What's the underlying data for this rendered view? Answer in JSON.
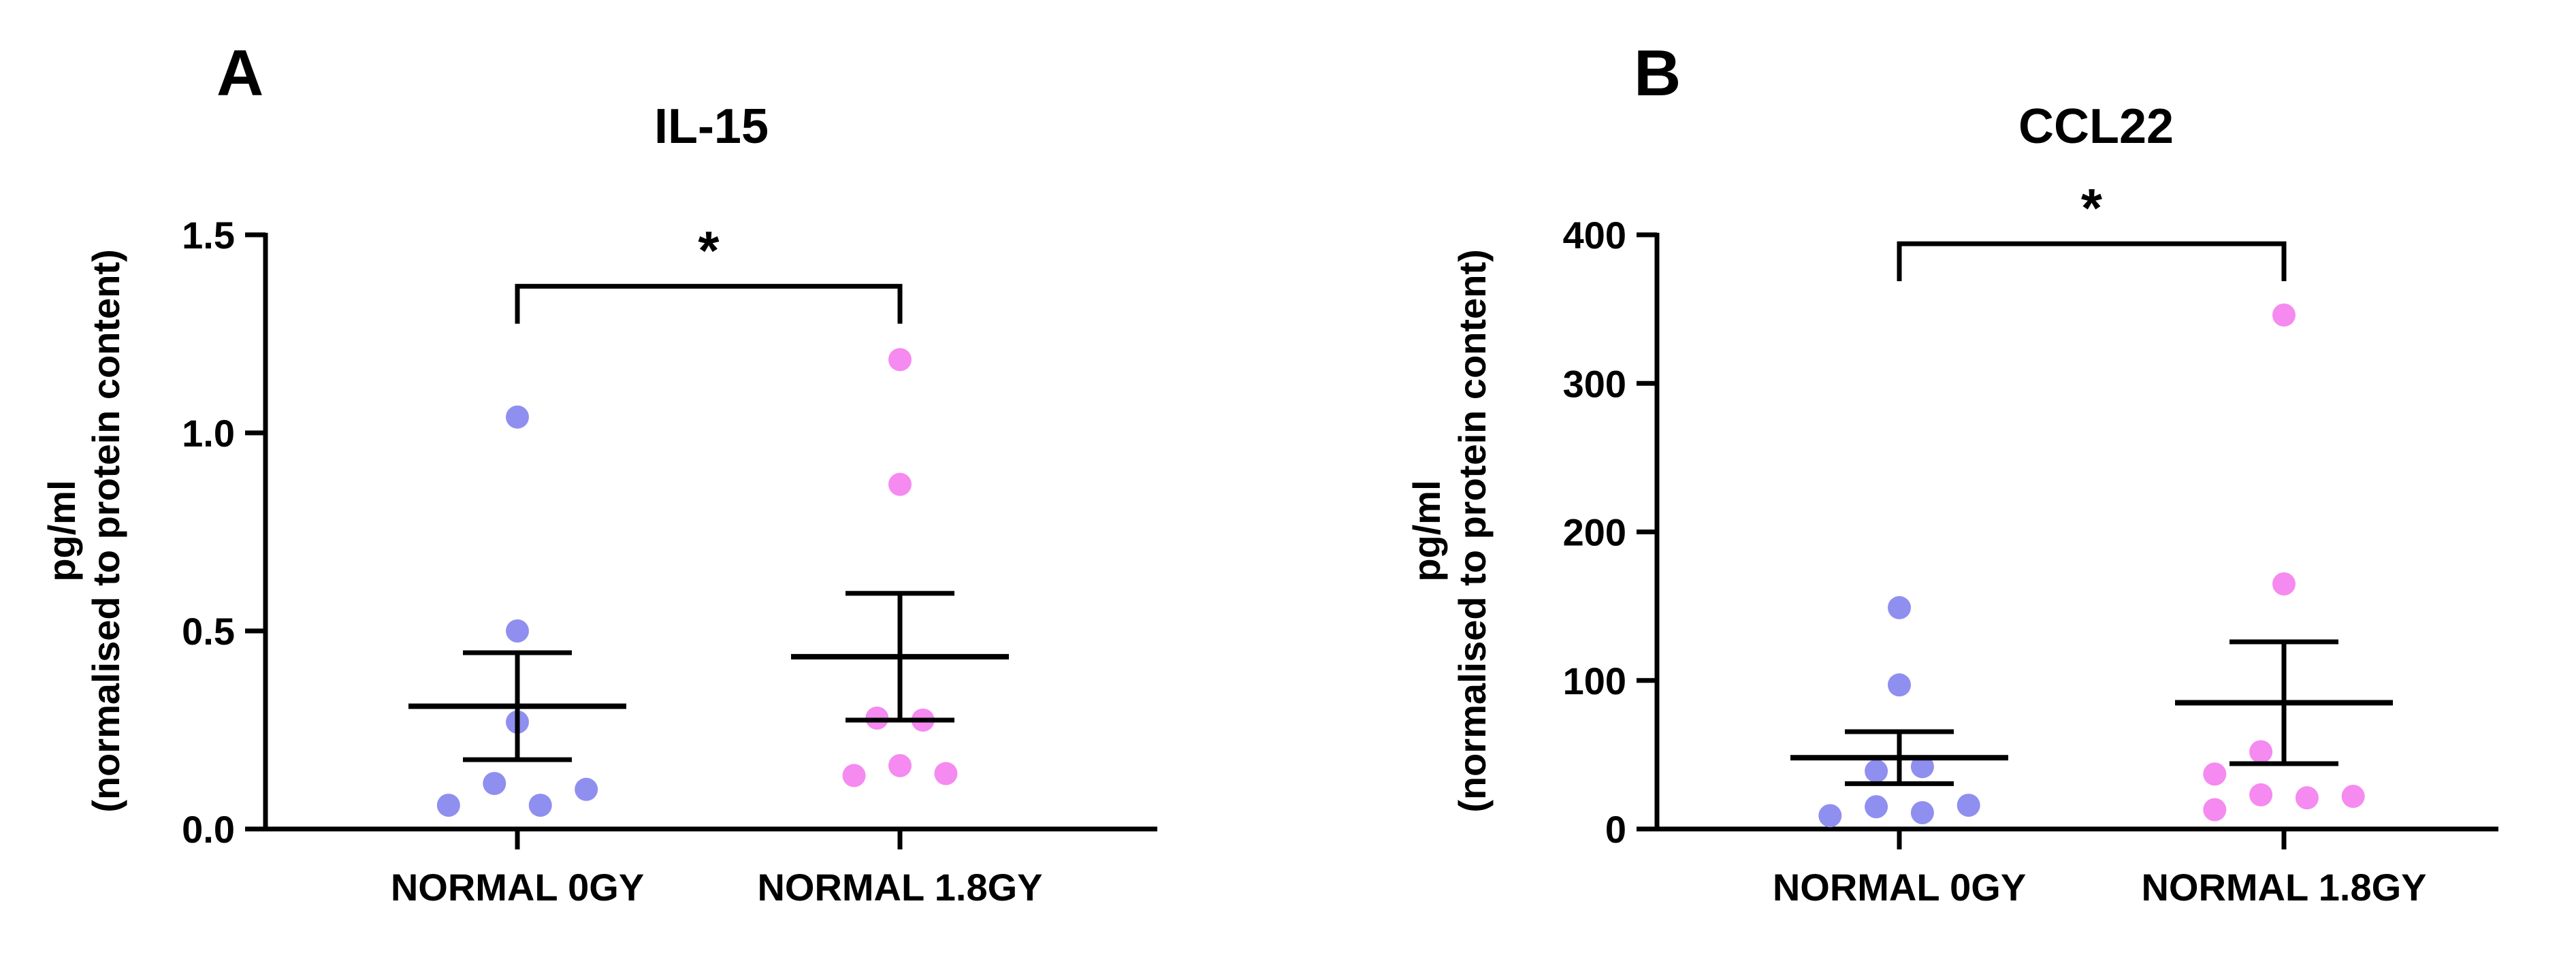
{
  "figure": {
    "panels": [
      {
        "letter": "A"
      },
      {
        "letter": "B"
      }
    ]
  },
  "colors": {
    "group1": "#8f8ff0",
    "group2": "#f58af0",
    "axis": "#000000"
  },
  "chart_data": [
    {
      "type": "scatter",
      "panel": "A",
      "title": "IL-15",
      "ylabel_line1": "pg/ml",
      "ylabel_line2": "(normalised to protein content)",
      "xlabel": "",
      "ylim": [
        0,
        1.5
      ],
      "yticks": [
        0.0,
        0.5,
        1.0,
        1.5
      ],
      "ytick_labels": [
        "0.0",
        "0.5",
        "1.0",
        "1.5"
      ],
      "categories": [
        "NORMAL 0GY",
        "NORMAL 1.8GY"
      ],
      "series": [
        {
          "name": "NORMAL 0GY",
          "color": "#8f8ff0",
          "values": [
            0.06,
            0.115,
            0.06,
            0.1,
            0.27,
            0.5,
            1.04
          ],
          "jitter": [
            -0.18,
            -0.06,
            0.06,
            0.18,
            0.0,
            0.0,
            0.0
          ],
          "mean": 0.31,
          "sem": 0.135
        },
        {
          "name": "NORMAL 1.8GY",
          "color": "#f58af0",
          "values": [
            0.135,
            0.16,
            0.14,
            0.28,
            0.275,
            0.87,
            1.185
          ],
          "jitter": [
            -0.12,
            0.0,
            0.12,
            -0.06,
            0.06,
            0.0,
            0.0
          ],
          "mean": 0.435,
          "sem": 0.16
        }
      ],
      "significance": {
        "from": 0,
        "to": 1,
        "label": "*",
        "y": 1.37
      }
    },
    {
      "type": "scatter",
      "panel": "B",
      "title": "CCL22",
      "ylabel_line1": "pg/ml",
      "ylabel_line2": "(normalised to protein content)",
      "xlabel": "",
      "ylim": [
        0,
        400
      ],
      "yticks": [
        0,
        100,
        200,
        300,
        400
      ],
      "ytick_labels": [
        "0",
        "100",
        "200",
        "300",
        "400"
      ],
      "categories": [
        "NORMAL 0GY",
        "NORMAL 1.8GY"
      ],
      "series": [
        {
          "name": "NORMAL 0GY",
          "color": "#8f8ff0",
          "values": [
            9,
            15,
            11,
            16,
            39,
            42,
            97,
            149
          ],
          "jitter": [
            -0.18,
            -0.06,
            0.06,
            0.18,
            -0.06,
            0.06,
            0.0,
            0.0
          ],
          "mean": 48,
          "sem": 17.5
        },
        {
          "name": "NORMAL 1.8GY",
          "color": "#f58af0",
          "values": [
            13,
            23,
            21,
            22,
            37,
            52,
            165,
            346
          ],
          "jitter": [
            -0.18,
            -0.06,
            0.06,
            0.18,
            -0.18,
            -0.06,
            0.0,
            0.0
          ],
          "mean": 85,
          "sem": 41
        }
      ],
      "significance": {
        "from": 0,
        "to": 1,
        "label": "*",
        "y": 394
      }
    }
  ]
}
